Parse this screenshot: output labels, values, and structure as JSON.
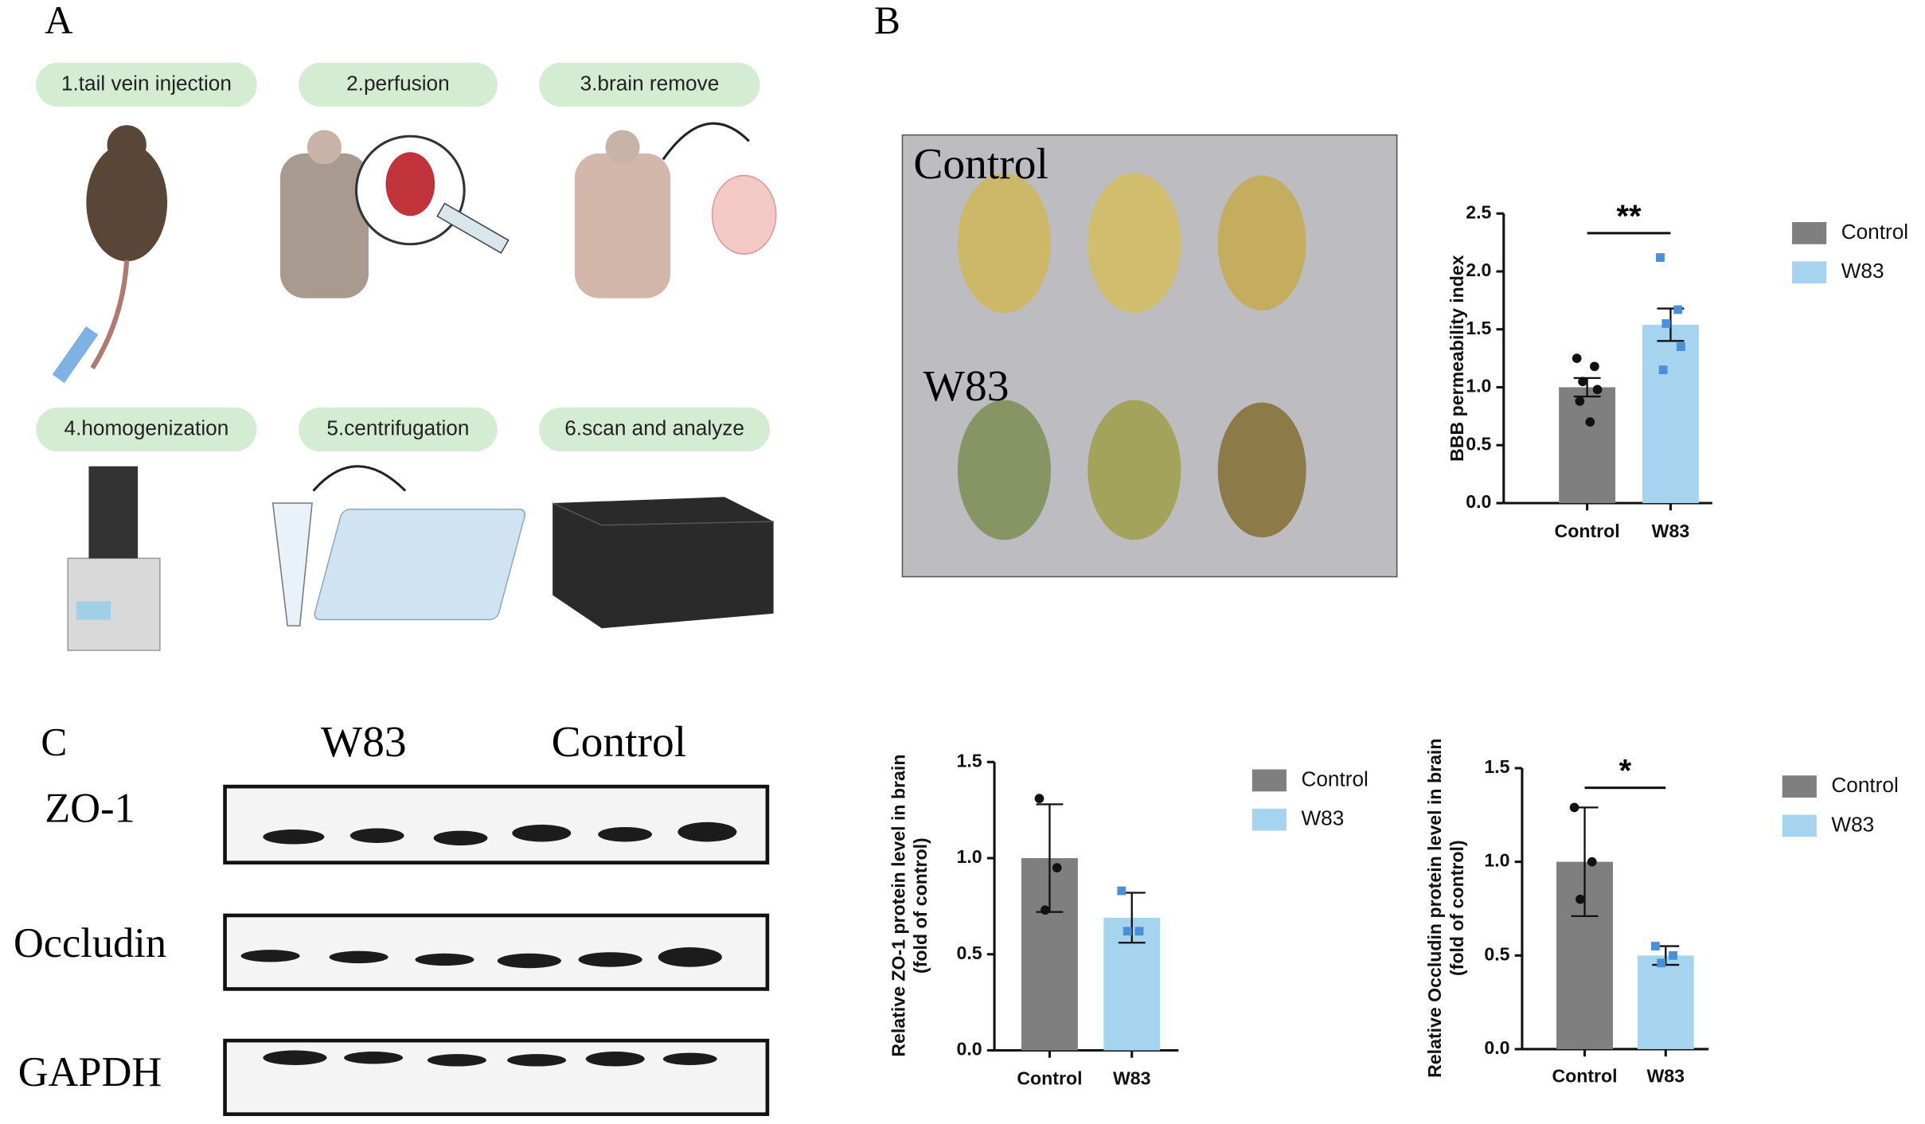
{
  "panel_labels": [
    "A",
    "B",
    "C"
  ],
  "steps": [
    "1.tail vein injection",
    "2.perfusion",
    "3.brain remove",
    "4.homogenization",
    "5.centrifugation",
    "6.scan and analyze"
  ],
  "photo": {
    "labels": [
      "Control",
      "W83"
    ]
  },
  "blot": {
    "columns": [
      "W83",
      "Control"
    ],
    "rows": [
      "ZO-1",
      "Occludin",
      "GAPDH"
    ]
  },
  "chart_data": [
    {
      "type": "bar",
      "ylabel": [
        "BBB permeability index"
      ],
      "categories": [
        "Control",
        "W83"
      ],
      "values": [
        1.0,
        1.54
      ],
      "errors": [
        0.08,
        0.14
      ],
      "points": [
        [
          1.25,
          1.18,
          1.05,
          0.98,
          0.88,
          0.7
        ],
        [
          2.12,
          1.67,
          1.55,
          1.35,
          1.15
        ]
      ],
      "colors": [
        "#7f7f7f",
        "#a6d4ef"
      ],
      "point_colors": [
        "#111111",
        "#4a90d9"
      ],
      "ylim": [
        0,
        2.5
      ],
      "yticks": [
        {
          "value": 0,
          "label": "0.0"
        },
        0.5,
        {
          "value": 1,
          "label": "1.0"
        },
        1.5,
        {
          "value": 2,
          "label": "2.0"
        },
        2.5
      ],
      "significance": "**",
      "legend": "right"
    },
    {
      "type": "bar",
      "ylabel": [
        "Relative ZO-1  protein  level in brain",
        "(fold of control)"
      ],
      "categories": [
        "Control",
        "W83"
      ],
      "values": [
        1.0,
        0.69
      ],
      "errors": [
        0.28,
        0.13
      ],
      "points": [
        [
          1.31,
          0.95,
          0.73
        ],
        [
          0.83,
          0.62,
          0.62
        ]
      ],
      "colors": [
        "#7f7f7f",
        "#a6d4ef"
      ],
      "point_colors": [
        "#111111",
        "#4a90d9"
      ],
      "ylim": [
        0,
        1.5
      ],
      "yticks": [
        {
          "value": 0,
          "label": "0.0"
        },
        0.5,
        {
          "value": 1,
          "label": "1.0"
        },
        1.5
      ],
      "legend": "right"
    },
    {
      "type": "bar",
      "ylabel": [
        "Relative Occludin  protein  level in brain",
        "(fold of control)"
      ],
      "categories": [
        "Control",
        "W83"
      ],
      "values": [
        1.0,
        0.5
      ],
      "errors": [
        0.29,
        0.05
      ],
      "points": [
        [
          1.29,
          1.0,
          0.8
        ],
        [
          0.55,
          0.5,
          0.46
        ]
      ],
      "colors": [
        "#7f7f7f",
        "#a6d4ef"
      ],
      "point_colors": [
        "#111111",
        "#4a90d9"
      ],
      "ylim": [
        0,
        1.5
      ],
      "yticks": [
        {
          "value": 0,
          "label": "0.0"
        },
        0.5,
        {
          "value": 1,
          "label": "1.0"
        },
        1.5
      ],
      "significance": "*",
      "legend": "right"
    }
  ]
}
